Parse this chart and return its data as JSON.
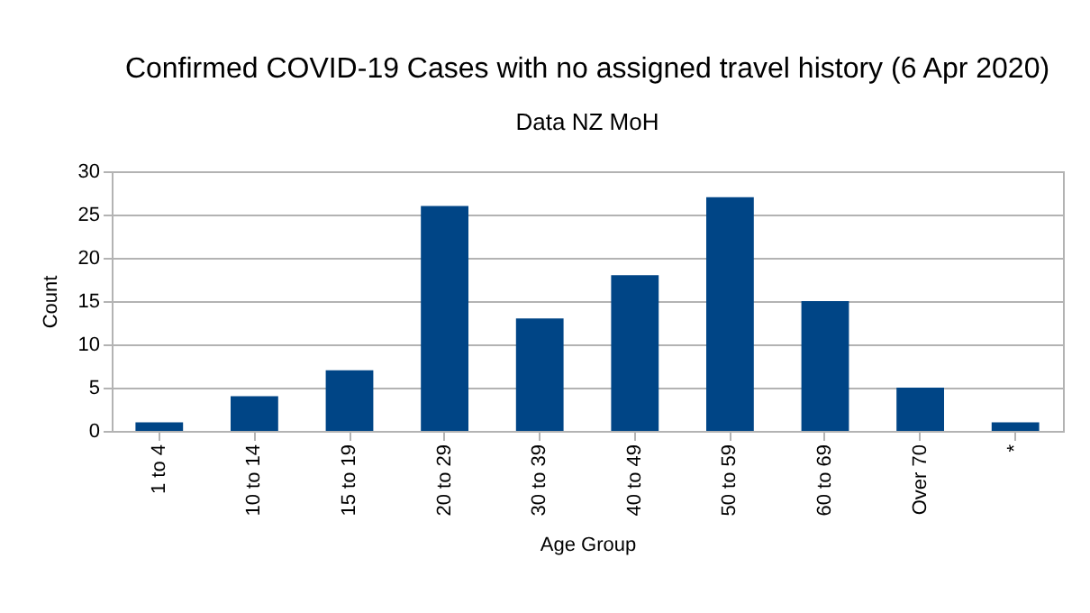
{
  "chart_data": {
    "type": "bar",
    "title": "Confirmed COVID-19 Cases with no assigned travel history (6 Apr 2020)",
    "subtitle": "Data NZ MoH",
    "xlabel": "Age Group",
    "ylabel": "Count",
    "categories": [
      "1 to 4",
      "10 to 14",
      "15 to 19",
      "20 to 29",
      "30 to 39",
      "40 to 49",
      "50 to 59",
      "60 to 69",
      "Over 70",
      "*"
    ],
    "values": [
      1,
      4,
      7,
      26,
      13,
      18,
      27,
      15,
      5,
      1
    ],
    "color": "#004586",
    "ylim": [
      0,
      30
    ],
    "yticks": [
      0,
      5,
      10,
      15,
      20,
      25,
      30
    ],
    "grid": "y"
  }
}
